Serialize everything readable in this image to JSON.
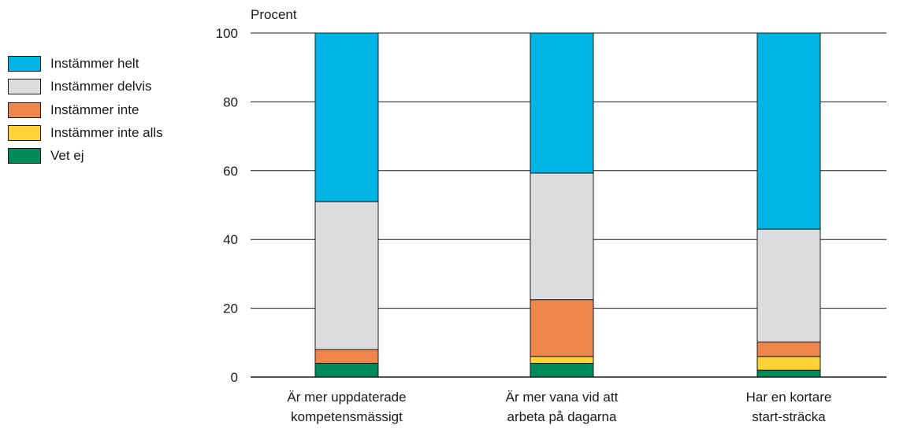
{
  "chart_data": {
    "type": "bar",
    "stacked": true,
    "ylabel": "Procent",
    "ylim": [
      0,
      100
    ],
    "yticks": [
      0,
      20,
      40,
      60,
      80,
      100
    ],
    "grid": true,
    "legend_position": "left",
    "categories": [
      [
        "Är mer uppdaterade",
        "kompetensmässigt"
      ],
      [
        "Är mer vana vid att",
        "arbeta på dagarna"
      ],
      [
        "Har en kortare",
        "start-sträcka"
      ]
    ],
    "series": [
      {
        "name": "Vet ej",
        "color": "#008c5a",
        "values": [
          4,
          4,
          2
        ]
      },
      {
        "name": "Instämmer inte alls",
        "color": "#ffd335",
        "values": [
          0,
          2,
          4
        ]
      },
      {
        "name": "Instämmer inte",
        "color": "#ee854a",
        "values": [
          4,
          16.5,
          4.2
        ]
      },
      {
        "name": "Instämmer delvis",
        "color": "#dcdddf",
        "values": [
          43,
          36.8,
          32.8
        ]
      },
      {
        "name": "Instämmer helt",
        "color": "#00b4e4",
        "values": [
          49,
          40.7,
          57
        ]
      }
    ]
  },
  "legend_order": [
    "Instämmer helt",
    "Instämmer delvis",
    "Instämmer inte",
    "Instämmer inte alls",
    "Vet ej"
  ]
}
